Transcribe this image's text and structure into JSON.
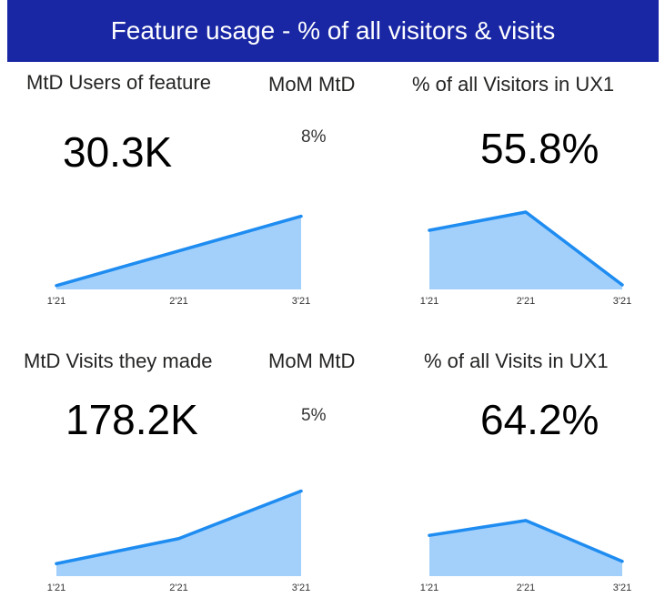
{
  "title": "Feature usage - % of all visitors & visits",
  "colors": {
    "banner": "#1927a4",
    "area_fill": "#a3d0fb",
    "line": "#1e8cf0"
  },
  "cards": {
    "users": {
      "label": "MtD Users of feature",
      "value": "30.3K"
    },
    "users_mom": {
      "label": "MoM MtD",
      "value": "8%"
    },
    "visitors_pct": {
      "label": "% of all Visitors in UX1",
      "value": "55.8%"
    },
    "visits": {
      "label": "MtD Visits they made",
      "value": "178.2K"
    },
    "visits_mom": {
      "label": "MoM MtD",
      "value": "5%"
    },
    "visits_pct": {
      "label": "% of all Visits in UX1",
      "value": "64.2%"
    }
  },
  "chart_data": [
    {
      "type": "area",
      "categories": [
        "1'21",
        "2'21",
        "3'21"
      ],
      "values": [
        28.5,
        29.4,
        30.3
      ],
      "ylim": [
        28.4,
        31.0
      ]
    },
    {
      "type": "area",
      "categories": [
        "1'21",
        "2'21",
        "3'21"
      ],
      "values": [
        57.0,
        57.4,
        55.8
      ],
      "ylim": [
        55.7,
        57.9
      ]
    },
    {
      "type": "area",
      "categories": [
        "1'21",
        "2'21",
        "3'21"
      ],
      "values": [
        169.5,
        172.5,
        178.2
      ],
      "ylim": [
        168.0,
        180.0
      ]
    },
    {
      "type": "area",
      "categories": [
        "1'21",
        "2'21",
        "3'21"
      ],
      "values": [
        64.9,
        65.3,
        64.2
      ],
      "ylim": [
        63.8,
        66.5
      ]
    }
  ]
}
